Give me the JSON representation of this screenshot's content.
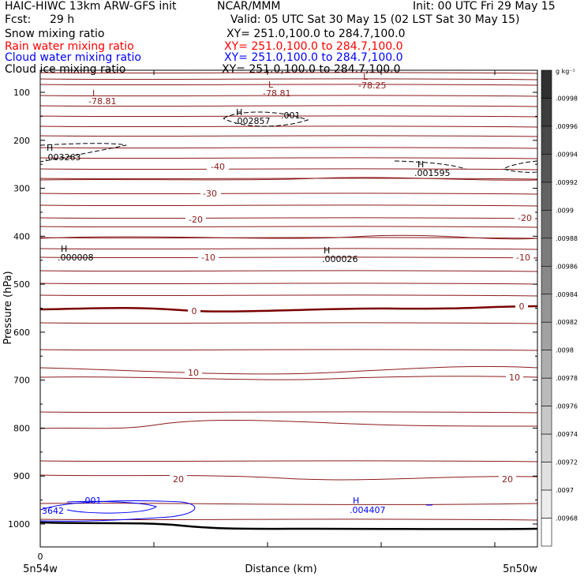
{
  "header": {
    "model": "HAIC-HIWC 13km ARW-GFS init",
    "org": "NCAR/MMM",
    "init": "Init: 00 UTC Fri 29 May 15",
    "fcst_label": "Fcst:",
    "fcst_value": "29 h",
    "valid": "Valid: 05 UTC Sat 30 May 15 (02 LST Sat 30 May 15)"
  },
  "fields": [
    {
      "label": "Snow mixing ratio",
      "xy": "XY= 251.0,100.0 to 284.7,100.0",
      "color": "#000000"
    },
    {
      "label": "Rain water mixing ratio",
      "xy": "XY= 251.0,100.0 to 284.7,100.0",
      "color": "#ff0000"
    },
    {
      "label": "Cloud water mixing ratio",
      "xy": "XY= 251.0,100.0 to 284.7,100.0",
      "color": "#0000ff"
    },
    {
      "label": "Cloud ice mixing ratio",
      "xy": "XY= 251.0,100.0 to 284.7,100.0",
      "color": "#000000"
    }
  ],
  "chart_data": {
    "type": "contour",
    "xlabel": "Distance (km)",
    "ylabel": "Pressure (hPa)",
    "x_start_label": "0",
    "x_left_label": "5n54w",
    "x_right_label": "5n50w",
    "y_ticks": [
      100,
      200,
      300,
      400,
      500,
      600,
      700,
      800,
      900,
      1000
    ],
    "ylim": [
      1050,
      75
    ],
    "temperature_contour_labels": [
      "-40",
      "-30",
      "-20",
      "-20",
      "-10",
      "-10",
      "0",
      "0",
      "10",
      "10",
      "20",
      "20"
    ],
    "extrema": [
      {
        "type": "L",
        "value": "-78.81",
        "pressure": 115
      },
      {
        "type": "L",
        "value": "-78.81",
        "pressure": 105
      },
      {
        "type": "L",
        "value": "-78.25",
        "pressure": 90
      },
      {
        "type": "H",
        "value": ".002857",
        "pressure": 155
      },
      {
        "type": "H",
        "value": ".003263",
        "pressure": 225
      },
      {
        "type": "H",
        "value": ".001595",
        "pressure": 262
      },
      {
        "type": "H",
        "value": ".000008",
        "pressure": 443
      },
      {
        "type": "H",
        "value": ".000026",
        "pressure": 445
      },
      {
        "type": "H",
        "value": ".004407",
        "pressure": 975
      }
    ],
    "cloud_ice_contour_label": ".001",
    "cloud_water_contour_label": ".001",
    "cloud_water_edge_label": "3642",
    "colorbar": {
      "unit": "g kg⁻¹",
      "labels": [
        ".00998",
        ".00996",
        ".00994",
        ".00992",
        ".0099",
        ".00988",
        ".00986",
        ".00984",
        ".00982",
        ".0098",
        ".00978",
        ".00976",
        ".00974",
        ".00972",
        ".0097",
        ".00968"
      ]
    }
  },
  "colors": {
    "temperature": "#8b1a1a",
    "zero_isotherm": "#7a0000",
    "cloud_water": "#0000ff",
    "cloud_ice": "#000000",
    "terrain": "#000000"
  }
}
